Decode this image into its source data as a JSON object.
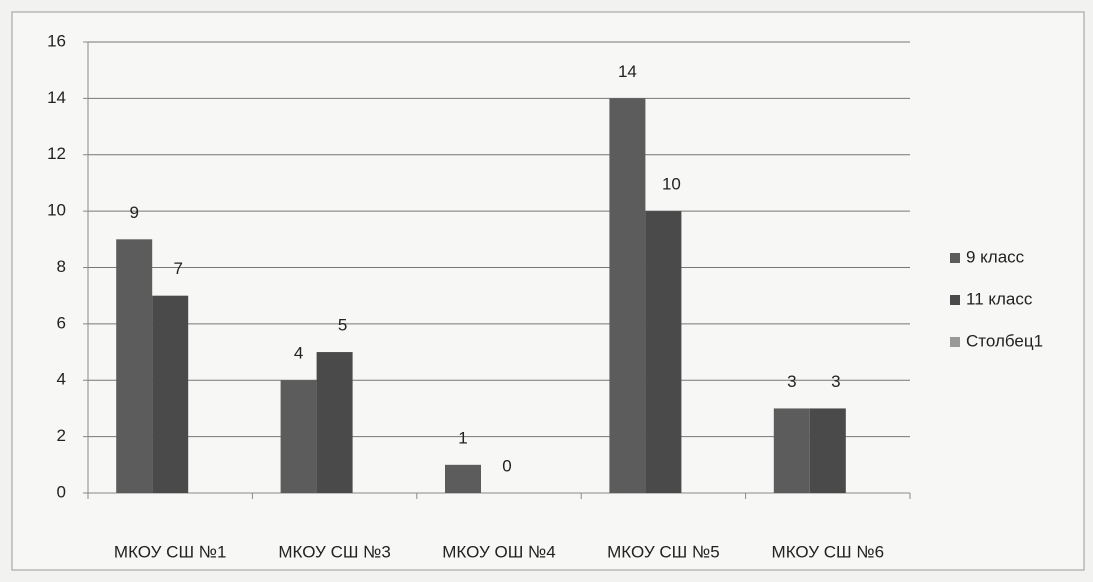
{
  "chart_data": {
    "type": "bar",
    "categories": [
      "МКОУ СШ №1",
      "МКОУ СШ №3",
      "МКОУ ОШ №4",
      "МКОУ СШ №5",
      "МКОУ СШ №6"
    ],
    "series": [
      {
        "name": "9 класс",
        "color": "#5c5c5c",
        "values": [
          9,
          4,
          1,
          14,
          3
        ]
      },
      {
        "name": "11 класс",
        "color": "#4a4a4a",
        "values": [
          7,
          5,
          0,
          10,
          3
        ]
      },
      {
        "name": "Столбец1",
        "color": "#999999",
        "values": [
          null,
          null,
          null,
          null,
          null
        ]
      }
    ],
    "ylim": [
      0,
      16
    ],
    "yticks": [
      0,
      2,
      4,
      6,
      8,
      10,
      12,
      14,
      16
    ],
    "grid": true,
    "legend": "right"
  }
}
